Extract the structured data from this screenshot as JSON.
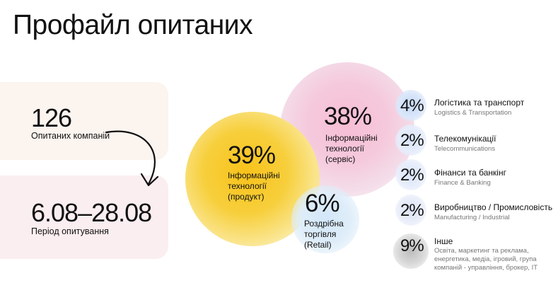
{
  "title": "Профайл опитаних",
  "stats": {
    "companies_value": "126",
    "companies_label": "Опитаних компаній",
    "period_value": "6.08–28.08",
    "period_label": "Період опитування"
  },
  "chart_data": {
    "type": "bubble",
    "title": "",
    "segments": [
      {
        "label": "Інформаційні технології (продукт)",
        "label_lines": [
          "Інформаційні",
          "технології",
          "(продукт)"
        ],
        "value": 39,
        "value_text": "39%",
        "color": "#f8c21a"
      },
      {
        "label": "Інформаційні технології (сервіс)",
        "label_lines": [
          "Інформаційні",
          "технології",
          "(сервіс)"
        ],
        "value": 38,
        "value_text": "38%",
        "color": "#f5bcd2"
      },
      {
        "label": "Роздрібна торгівля (Retail)",
        "label_lines": [
          "Роздрібна",
          "торгівля",
          "(Retail)"
        ],
        "value": 6,
        "value_text": "6%",
        "color": "#d3e7f9"
      },
      {
        "label": "Логістика та транспорт",
        "sublabel": "Logistics & Transportation",
        "value": 4,
        "value_text": "4%",
        "color": "#c9dcf7"
      },
      {
        "label": "Телекомунікації",
        "sublabel": "Telecommunications",
        "value": 2,
        "value_text": "2%",
        "color": "#dce6fa"
      },
      {
        "label": "Фінанси та банкінг",
        "sublabel": "Finance & Banking",
        "value": 2,
        "value_text": "2%",
        "color": "#dee8fa"
      },
      {
        "label": "Виробництво / Промисловість",
        "sublabel": "Manufacturing / Industrial",
        "value": 2,
        "value_text": "2%",
        "color": "#dfe6f6"
      },
      {
        "label": "Інше",
        "sublabel_lines": [
          "Освіта, маркетинг та реклама,",
          "енергетика, медіа, ігровий, група",
          "компаній - управління, брокер, IT"
        ],
        "value": 9,
        "value_text": "9%",
        "color": "#c8c8c8"
      }
    ]
  }
}
